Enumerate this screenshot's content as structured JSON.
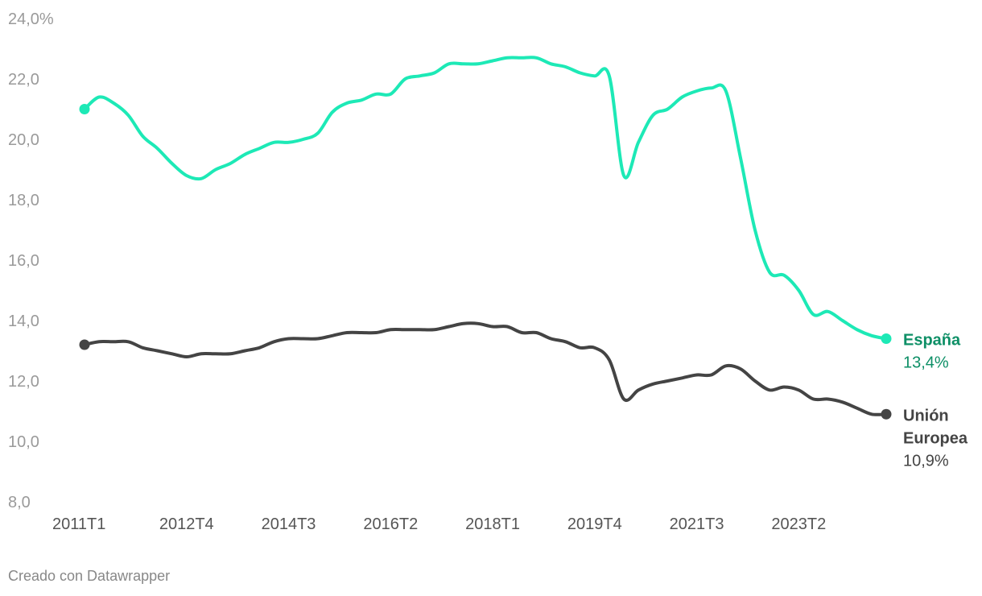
{
  "chart_data": {
    "type": "line",
    "ylim": [
      8,
      24
    ],
    "yticks": [
      8,
      10,
      12,
      14,
      16,
      18,
      20,
      22,
      24
    ],
    "ytick_labels": [
      "8,0",
      "10,0",
      "12,0",
      "14,0",
      "16,0",
      "18,0",
      "20,0",
      "22,0",
      "24,0%"
    ],
    "xticks": [
      "2011T1",
      "2012T4",
      "2014T3",
      "2016T2",
      "2018T1",
      "2019T4",
      "2021T3",
      "2023T2"
    ],
    "x": [
      "2011T1",
      "2011T2",
      "2011T3",
      "2011T4",
      "2012T1",
      "2012T2",
      "2012T3",
      "2012T4",
      "2013T1",
      "2013T2",
      "2013T3",
      "2013T4",
      "2014T1",
      "2014T2",
      "2014T3",
      "2014T4",
      "2015T1",
      "2015T2",
      "2015T3",
      "2015T4",
      "2016T1",
      "2016T2",
      "2016T3",
      "2016T4",
      "2017T1",
      "2017T2",
      "2017T3",
      "2017T4",
      "2018T1",
      "2018T2",
      "2018T3",
      "2018T4",
      "2019T1",
      "2019T2",
      "2019T3",
      "2019T4",
      "2020T1",
      "2020T2",
      "2020T3",
      "2020T4",
      "2021T1",
      "2021T2",
      "2021T3",
      "2021T4",
      "2022T1",
      "2022T2",
      "2022T3",
      "2022T4",
      "2023T1",
      "2023T2",
      "2023T3",
      "2023T4",
      "2024T1",
      "2024T2",
      "2024T3",
      "2024T4"
    ],
    "series": [
      {
        "name": "España",
        "label_lines": [
          "España"
        ],
        "value_label": "13,4%",
        "color": "#1de9b6",
        "label_color": "#0d8f66",
        "values": [
          21.0,
          21.4,
          21.2,
          20.8,
          20.1,
          19.7,
          19.2,
          18.8,
          18.7,
          19.0,
          19.2,
          19.5,
          19.7,
          19.9,
          19.9,
          20.0,
          20.2,
          20.9,
          21.2,
          21.3,
          21.5,
          21.5,
          22.0,
          22.1,
          22.2,
          22.5,
          22.5,
          22.5,
          22.6,
          22.7,
          22.7,
          22.7,
          22.5,
          22.4,
          22.2,
          22.1,
          22.1,
          18.8,
          19.9,
          20.8,
          21.0,
          21.4,
          21.6,
          21.7,
          21.6,
          19.4,
          17.0,
          15.6,
          15.5,
          15.0,
          14.2,
          14.3,
          14.0,
          13.7,
          13.5,
          13.4
        ]
      },
      {
        "name": "Unión Europea",
        "label_lines": [
          "Unión",
          "Europea"
        ],
        "value_label": "10,9%",
        "color": "#444444",
        "label_color": "#444444",
        "values": [
          13.2,
          13.3,
          13.3,
          13.3,
          13.1,
          13.0,
          12.9,
          12.8,
          12.9,
          12.9,
          12.9,
          13.0,
          13.1,
          13.3,
          13.4,
          13.4,
          13.4,
          13.5,
          13.6,
          13.6,
          13.6,
          13.7,
          13.7,
          13.7,
          13.7,
          13.8,
          13.9,
          13.9,
          13.8,
          13.8,
          13.6,
          13.6,
          13.4,
          13.3,
          13.1,
          13.1,
          12.7,
          11.4,
          11.7,
          11.9,
          12.0,
          12.1,
          12.2,
          12.2,
          12.5,
          12.4,
          12.0,
          11.7,
          11.8,
          11.7,
          11.4,
          11.4,
          11.3,
          11.1,
          10.9,
          10.9
        ]
      }
    ],
    "grid": false,
    "legend": "direct-labels-right"
  },
  "footer": {
    "credit": "Creado con Datawrapper"
  }
}
